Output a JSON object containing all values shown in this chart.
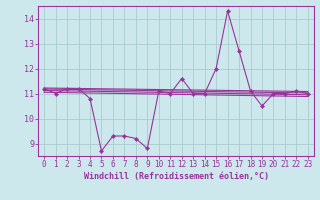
{
  "title": "",
  "xlabel": "Windchill (Refroidissement éolien,°C)",
  "bg_color": "#cce8ec",
  "grid_color": "#aacccc",
  "line_color": "#993399",
  "xlim": [
    -0.5,
    23.5
  ],
  "ylim": [
    8.5,
    14.5
  ],
  "yticks": [
    9,
    10,
    11,
    12,
    13,
    14
  ],
  "xticks": [
    0,
    1,
    2,
    3,
    4,
    5,
    6,
    7,
    8,
    9,
    10,
    11,
    12,
    13,
    14,
    15,
    16,
    17,
    18,
    19,
    20,
    21,
    22,
    23
  ],
  "series": [
    11.2,
    11.0,
    11.2,
    11.2,
    10.8,
    8.7,
    9.3,
    9.3,
    9.2,
    8.8,
    11.1,
    11.0,
    11.6,
    11.0,
    11.0,
    12.0,
    14.3,
    12.7,
    11.1,
    10.5,
    11.0,
    11.0,
    11.1,
    11.0
  ],
  "trend_lines": [
    {
      "x": [
        0,
        23
      ],
      "y": [
        11.22,
        11.08
      ]
    },
    {
      "x": [
        0,
        23
      ],
      "y": [
        11.12,
        10.95
      ]
    },
    {
      "x": [
        0,
        23
      ],
      "y": [
        11.18,
        11.02
      ]
    },
    {
      "x": [
        0,
        23
      ],
      "y": [
        11.05,
        10.88
      ]
    }
  ]
}
